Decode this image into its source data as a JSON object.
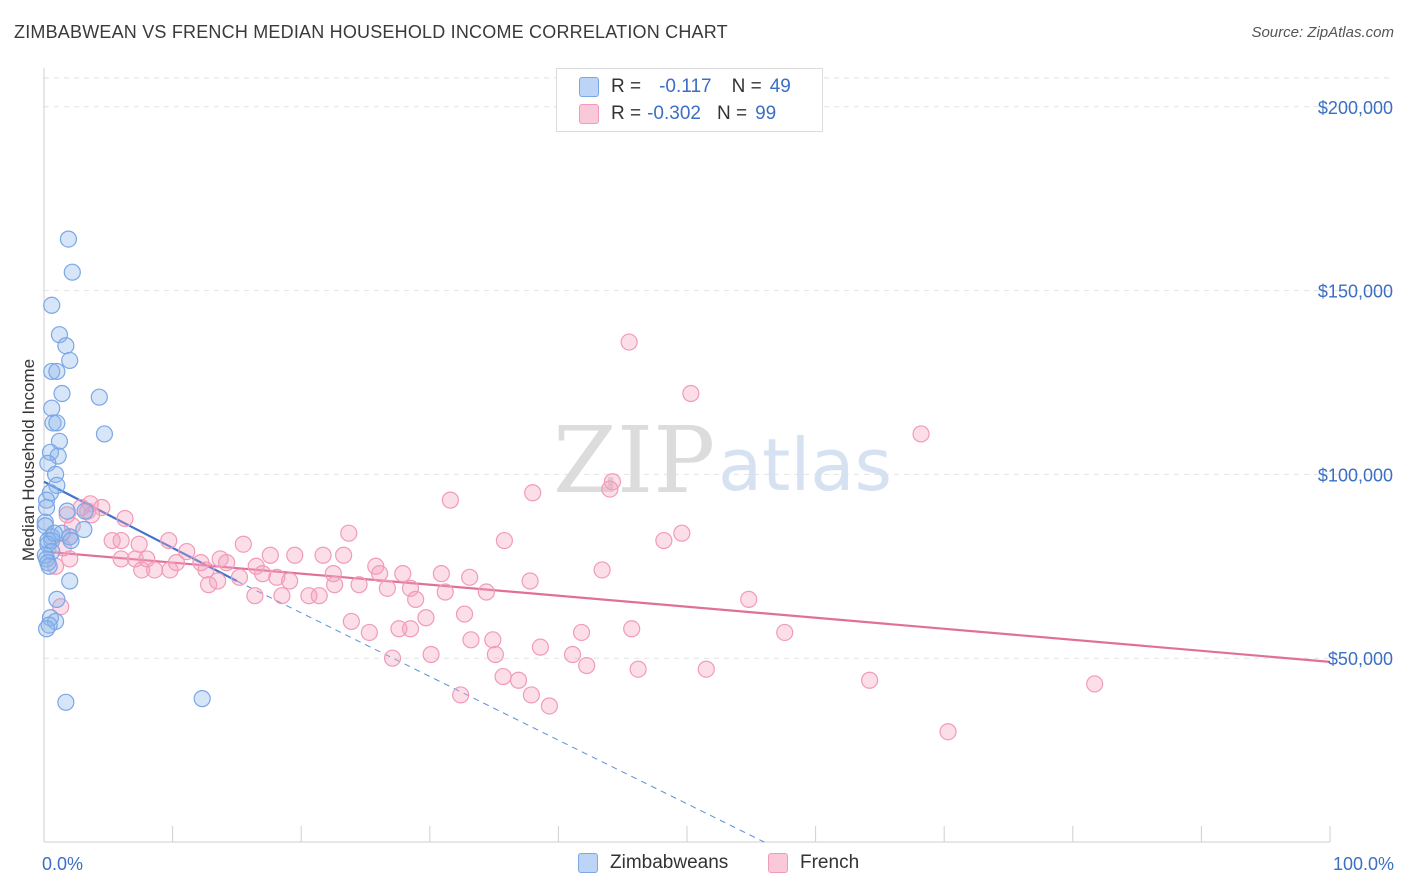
{
  "title": "ZIMBABWEAN VS FRENCH MEDIAN HOUSEHOLD INCOME CORRELATION CHART",
  "source": "Source: ZipAtlas.com",
  "watermark": {
    "zip": "ZIP",
    "atlas": "atlas"
  },
  "legend_top": {
    "rows": [
      {
        "r_label": "R =",
        "r_value": "-0.117",
        "n_label": "N =",
        "n_value": "49",
        "color": "#7aa7e6"
      },
      {
        "r_label": "R =",
        "r_value": "-0.302",
        "n_label": "N =",
        "n_value": "99",
        "color": "#f29ab9"
      }
    ]
  },
  "chart_data": {
    "type": "scatter",
    "title": "ZIMBABWEAN VS FRENCH MEDIAN HOUSEHOLD INCOME CORRELATION CHART",
    "xlabel": "",
    "ylabel": "Median Household Income",
    "xlim": [
      0,
      100
    ],
    "ylim": [
      0,
      210000
    ],
    "x_tick_labels": [
      "0.0%",
      "100.0%"
    ],
    "y_ticks": [
      50000,
      100000,
      150000,
      200000
    ],
    "y_tick_labels": [
      "$50,000",
      "$100,000",
      "$150,000",
      "$200,000"
    ],
    "grid": true,
    "series": [
      {
        "name": "Zimbabweans",
        "color": "#7aa7e6",
        "r": -0.117,
        "n": 49,
        "points": [
          [
            1.9,
            164000
          ],
          [
            2.2,
            155000
          ],
          [
            0.6,
            146000
          ],
          [
            1.2,
            138000
          ],
          [
            1.7,
            135000
          ],
          [
            2.0,
            131000
          ],
          [
            0.6,
            128000
          ],
          [
            1.0,
            128000
          ],
          [
            1.4,
            122000
          ],
          [
            4.3,
            121000
          ],
          [
            0.6,
            118000
          ],
          [
            0.7,
            114000
          ],
          [
            1.0,
            114000
          ],
          [
            4.7,
            111000
          ],
          [
            1.2,
            109000
          ],
          [
            0.5,
            106000
          ],
          [
            1.1,
            105000
          ],
          [
            0.3,
            103000
          ],
          [
            0.9,
            100000
          ],
          [
            1.0,
            97000
          ],
          [
            0.5,
            95000
          ],
          [
            0.2,
            93000
          ],
          [
            0.2,
            91000
          ],
          [
            1.8,
            90000
          ],
          [
            3.2,
            90000
          ],
          [
            0.1,
            87000
          ],
          [
            0.1,
            86000
          ],
          [
            3.1,
            85000
          ],
          [
            1.4,
            84000
          ],
          [
            0.6,
            83000
          ],
          [
            2.0,
            83000
          ],
          [
            0.3,
            82000
          ],
          [
            0.6,
            82000
          ],
          [
            2.1,
            82000
          ],
          [
            0.3,
            81000
          ],
          [
            0.6,
            79000
          ],
          [
            0.1,
            78000
          ],
          [
            0.2,
            77000
          ],
          [
            0.3,
            76000
          ],
          [
            0.4,
            75000
          ],
          [
            2.0,
            71000
          ],
          [
            1.0,
            66000
          ],
          [
            0.5,
            61000
          ],
          [
            0.9,
            60000
          ],
          [
            0.4,
            59000
          ],
          [
            0.2,
            58000
          ],
          [
            1.7,
            38000
          ],
          [
            12.3,
            39000
          ],
          [
            0.8,
            84000
          ]
        ]
      },
      {
        "name": "French",
        "color": "#f29ab9",
        "r": -0.302,
        "n": 99,
        "points": [
          [
            45.5,
            136000
          ],
          [
            50.3,
            122000
          ],
          [
            68.2,
            111000
          ],
          [
            44.2,
            98000
          ],
          [
            44.0,
            96000
          ],
          [
            38.0,
            95000
          ],
          [
            31.6,
            93000
          ],
          [
            3.6,
            92000
          ],
          [
            4.5,
            91000
          ],
          [
            2.9,
            91000
          ],
          [
            3.4,
            90000
          ],
          [
            1.8,
            89000
          ],
          [
            3.7,
            89000
          ],
          [
            6.3,
            88000
          ],
          [
            2.2,
            86000
          ],
          [
            2.0,
            83000
          ],
          [
            23.7,
            84000
          ],
          [
            49.6,
            84000
          ],
          [
            35.8,
            82000
          ],
          [
            48.2,
            82000
          ],
          [
            5.3,
            82000
          ],
          [
            6.0,
            82000
          ],
          [
            9.7,
            82000
          ],
          [
            1.5,
            80000
          ],
          [
            7.4,
            81000
          ],
          [
            15.5,
            81000
          ],
          [
            11.1,
            79000
          ],
          [
            17.6,
            78000
          ],
          [
            19.5,
            78000
          ],
          [
            21.7,
            78000
          ],
          [
            23.3,
            78000
          ],
          [
            6.0,
            77000
          ],
          [
            7.1,
            77000
          ],
          [
            8.0,
            77000
          ],
          [
            13.7,
            77000
          ],
          [
            12.2,
            76000
          ],
          [
            14.2,
            76000
          ],
          [
            10.3,
            76000
          ],
          [
            16.5,
            75000
          ],
          [
            25.8,
            75000
          ],
          [
            43.4,
            74000
          ],
          [
            7.6,
            74000
          ],
          [
            8.6,
            74000
          ],
          [
            9.8,
            74000
          ],
          [
            12.6,
            74000
          ],
          [
            17.0,
            73000
          ],
          [
            22.5,
            73000
          ],
          [
            26.1,
            73000
          ],
          [
            27.9,
            73000
          ],
          [
            30.9,
            73000
          ],
          [
            33.1,
            72000
          ],
          [
            15.2,
            72000
          ],
          [
            18.1,
            72000
          ],
          [
            19.1,
            71000
          ],
          [
            12.8,
            70000
          ],
          [
            13.5,
            71000
          ],
          [
            37.8,
            71000
          ],
          [
            22.6,
            70000
          ],
          [
            24.5,
            70000
          ],
          [
            26.7,
            69000
          ],
          [
            28.5,
            69000
          ],
          [
            31.2,
            68000
          ],
          [
            34.4,
            68000
          ],
          [
            18.5,
            67000
          ],
          [
            16.4,
            67000
          ],
          [
            21.4,
            67000
          ],
          [
            20.6,
            67000
          ],
          [
            28.9,
            66000
          ],
          [
            54.8,
            66000
          ],
          [
            1.3,
            64000
          ],
          [
            29.7,
            61000
          ],
          [
            32.7,
            62000
          ],
          [
            23.9,
            60000
          ],
          [
            25.3,
            57000
          ],
          [
            28.5,
            58000
          ],
          [
            27.6,
            58000
          ],
          [
            41.8,
            57000
          ],
          [
            45.7,
            58000
          ],
          [
            33.2,
            55000
          ],
          [
            34.9,
            55000
          ],
          [
            38.6,
            53000
          ],
          [
            35.1,
            51000
          ],
          [
            41.1,
            51000
          ],
          [
            30.1,
            51000
          ],
          [
            27.1,
            50000
          ],
          [
            57.6,
            57000
          ],
          [
            42.2,
            48000
          ],
          [
            46.2,
            47000
          ],
          [
            51.5,
            47000
          ],
          [
            35.7,
            45000
          ],
          [
            36.9,
            44000
          ],
          [
            64.2,
            44000
          ],
          [
            81.7,
            43000
          ],
          [
            32.4,
            40000
          ],
          [
            37.9,
            40000
          ],
          [
            39.3,
            37000
          ],
          [
            70.3,
            30000
          ],
          [
            2.0,
            77000
          ],
          [
            0.9,
            75000
          ]
        ]
      }
    ],
    "trend_lines": [
      {
        "series": "Zimbabweans",
        "from": [
          0,
          98000
        ],
        "to": [
          15,
          71000
        ],
        "dashed_extension_to": [
          56,
          0
        ]
      },
      {
        "series": "French",
        "from": [
          0,
          79000
        ],
        "to": [
          100,
          49000
        ]
      }
    ]
  },
  "bottom_legend": [
    {
      "label": "Zimbabweans",
      "color": "#7aa7e6"
    },
    {
      "label": "French",
      "color": "#f29ab9"
    }
  ]
}
